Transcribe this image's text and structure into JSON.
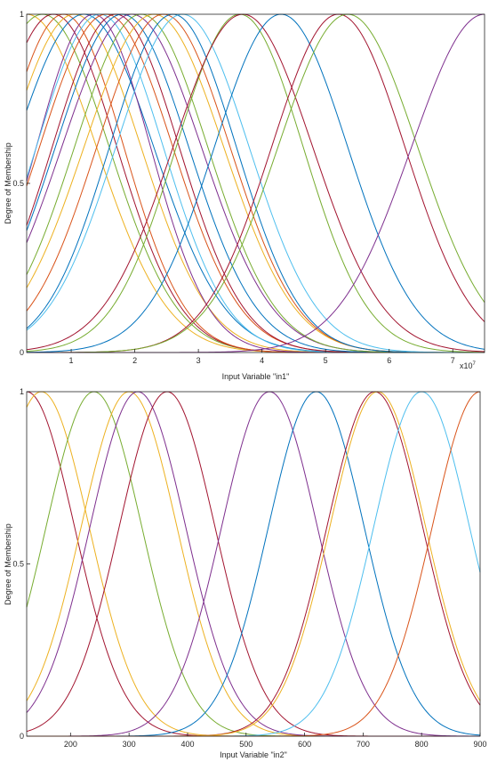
{
  "chart_data": [
    {
      "type": "line",
      "xlabel": "Input Variable \"in1\"",
      "ylabel": "Degree of Membership",
      "xlim": [
        0.3,
        7.5
      ],
      "ylim": [
        0,
        1
      ],
      "x_ticks": [
        1,
        2,
        3,
        4,
        5,
        6,
        7
      ],
      "y_ticks": [
        0,
        0.5,
        1
      ],
      "x_tick_labels": [
        "1",
        "2",
        "3",
        "4",
        "5",
        "6",
        "7"
      ],
      "y_tick_labels": [
        "0",
        "0.5",
        "1"
      ],
      "x_exponent_label": "x10",
      "x_exponent_power": "7",
      "grid": false,
      "curve_shape": "gaussian",
      "series": [
        {
          "center": 0.3,
          "sigma": 1.1,
          "color": "#EDB120"
        },
        {
          "center": 0.55,
          "sigma": 1.05,
          "color": "#77AC30"
        },
        {
          "center": 0.72,
          "sigma": 1.0,
          "color": "#A2142F"
        },
        {
          "center": 0.88,
          "sigma": 0.95,
          "color": "#D95319"
        },
        {
          "center": 1.05,
          "sigma": 1.05,
          "color": "#EDB120"
        },
        {
          "center": 1.2,
          "sigma": 1.1,
          "color": "#0072BD"
        },
        {
          "center": 1.35,
          "sigma": 0.9,
          "color": "#7E2F8E"
        },
        {
          "center": 1.45,
          "sigma": 1.0,
          "color": "#4DBEEE"
        },
        {
          "center": 1.55,
          "sigma": 1.05,
          "color": "#D95319"
        },
        {
          "center": 1.7,
          "sigma": 1.0,
          "color": "#A2142F"
        },
        {
          "center": 1.8,
          "sigma": 1.05,
          "color": "#0072BD"
        },
        {
          "center": 1.95,
          "sigma": 1.1,
          "color": "#7E2F8E"
        },
        {
          "center": 2.1,
          "sigma": 1.05,
          "color": "#77AC30"
        },
        {
          "center": 2.3,
          "sigma": 1.1,
          "color": "#EDB120"
        },
        {
          "center": 2.45,
          "sigma": 1.05,
          "color": "#D95319"
        },
        {
          "center": 2.6,
          "sigma": 1.0,
          "color": "#0072BD"
        },
        {
          "center": 2.75,
          "sigma": 1.05,
          "color": "#4DBEEE"
        },
        {
          "center": 3.65,
          "sigma": 1.0,
          "color": "#77AC30"
        },
        {
          "center": 3.7,
          "sigma": 1.1,
          "color": "#A2142F"
        },
        {
          "center": 4.3,
          "sigma": 1.05,
          "color": "#0072BD"
        },
        {
          "center": 5.2,
          "sigma": 1.05,
          "color": "#A2142F"
        },
        {
          "center": 5.35,
          "sigma": 1.1,
          "color": "#77AC30"
        },
        {
          "center": 7.5,
          "sigma": 1.15,
          "color": "#7E2F8E"
        }
      ]
    },
    {
      "type": "line",
      "xlabel": "Input Variable \"in2\"",
      "ylabel": "Degree of Membership",
      "xlim": [
        125,
        900
      ],
      "ylim": [
        0,
        1
      ],
      "x_ticks": [
        200,
        300,
        400,
        500,
        600,
        700,
        800,
        900
      ],
      "y_ticks": [
        0,
        0.5,
        1
      ],
      "x_tick_labels": [
        "200",
        "300",
        "400",
        "500",
        "600",
        "700",
        "800",
        "900"
      ],
      "y_tick_labels": [
        "0",
        "0.5",
        "1"
      ],
      "grid": false,
      "curve_shape": "gaussian",
      "series": [
        {
          "center": 125,
          "sigma": 82,
          "color": "#A2142F"
        },
        {
          "center": 150,
          "sigma": 82,
          "color": "#EDB120"
        },
        {
          "center": 240,
          "sigma": 82,
          "color": "#77AC30"
        },
        {
          "center": 300,
          "sigma": 82,
          "color": "#EDB120"
        },
        {
          "center": 315,
          "sigma": 82,
          "color": "#7E2F8E"
        },
        {
          "center": 365,
          "sigma": 82,
          "color": "#A2142F"
        },
        {
          "center": 540,
          "sigma": 82,
          "color": "#7E2F8E"
        },
        {
          "center": 620,
          "sigma": 82,
          "color": "#0072BD"
        },
        {
          "center": 720,
          "sigma": 82,
          "color": "#A2142F"
        },
        {
          "center": 725,
          "sigma": 82,
          "color": "#EDB120"
        },
        {
          "center": 800,
          "sigma": 82,
          "color": "#4DBEEE"
        },
        {
          "center": 900,
          "sigma": 82,
          "color": "#D95319"
        }
      ]
    }
  ]
}
